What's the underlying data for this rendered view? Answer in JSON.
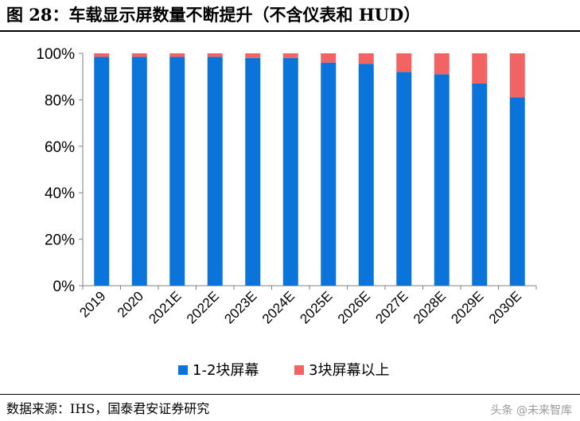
{
  "title": "图 28：车载显示屏数量不断提升（不含仪表和 HUD）",
  "source": "数据来源：IHS，国泰君安证券研究",
  "watermark": "头条 @未来智库",
  "colors": {
    "series1": "#0B74DB",
    "series2": "#F26363",
    "axis": "#808080"
  },
  "chart_data": {
    "type": "bar",
    "stacked": true,
    "categories": [
      "2019",
      "2020",
      "2021E",
      "2022E",
      "2023E",
      "2024E",
      "2025E",
      "2026E",
      "2027E",
      "2028E",
      "2029E",
      "2030E"
    ],
    "series": [
      {
        "name": "1-2块屏幕",
        "values": [
          98.5,
          98.5,
          98.5,
          98.5,
          98,
          98,
          96,
          95.5,
          92,
          91,
          87,
          81
        ]
      },
      {
        "name": "3块屏幕以上",
        "values": [
          1.5,
          1.5,
          1.5,
          1.5,
          2,
          2,
          4,
          4.5,
          8,
          9,
          13,
          19
        ]
      }
    ],
    "ylim": [
      0,
      100
    ],
    "yticks": [
      "0%",
      "20%",
      "40%",
      "60%",
      "80%",
      "100%"
    ],
    "legend_position": "bottom",
    "grid": false
  }
}
